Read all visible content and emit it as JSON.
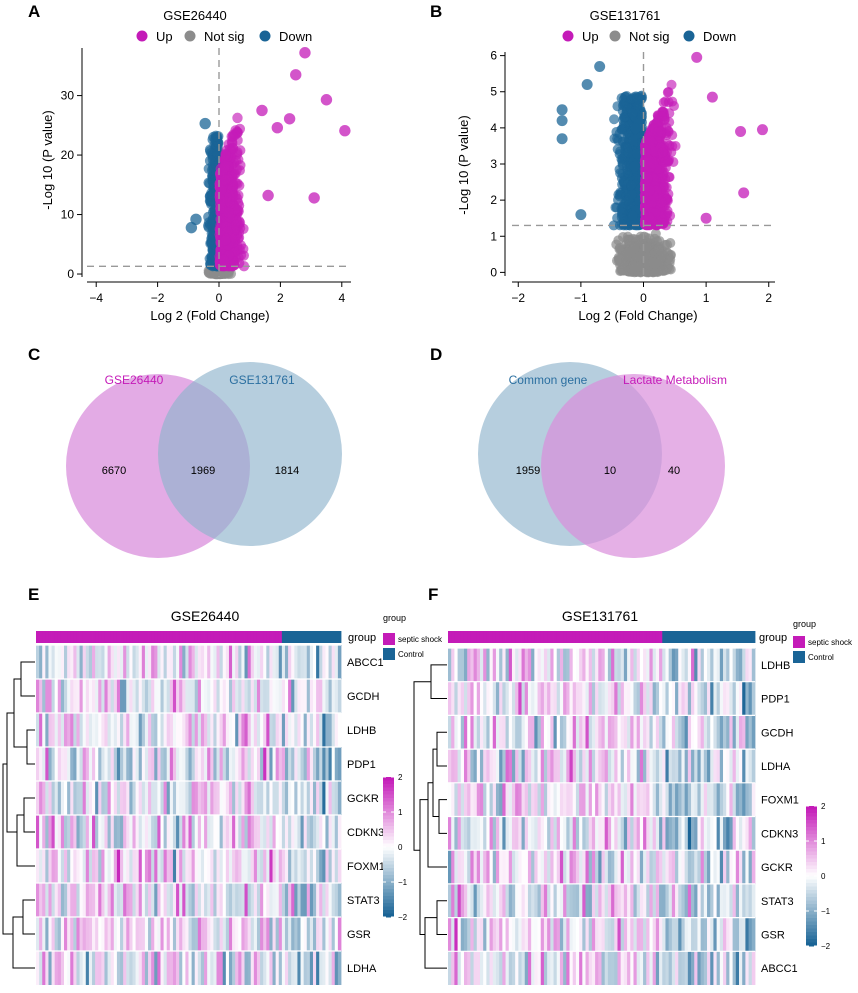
{
  "colors": {
    "up": "#C41BB8",
    "down": "#1A6496",
    "notsig": "#8C8C8C",
    "venn_pink": "#DA8FDC",
    "venn_blue": "#8FB3CC",
    "venn_pink_label": "#C41BB8",
    "venn_blue_label": "#2B6FA0",
    "heat_high": "#C41BB8",
    "heat_mid": "#FFFFFF",
    "heat_low": "#1A6496"
  },
  "panels": {
    "A": "A",
    "B": "B",
    "C": "C",
    "D": "D",
    "E": "E",
    "F": "F"
  },
  "chart_data": [
    {
      "id": "A",
      "type": "scatter",
      "title": "GSE26440",
      "legend": [
        "Up",
        "Not sig",
        "Down"
      ],
      "legend_position": "top",
      "xlabel": "Log 2 (Fold Change)",
      "ylabel": "-Log 10 (P value)",
      "xlim": [
        -4.3,
        4.3
      ],
      "ylim": [
        -0.5,
        38
      ],
      "xticks": [
        -4,
        -2,
        0,
        2,
        4
      ],
      "yticks": [
        0,
        10,
        20,
        30
      ],
      "vline": 0,
      "hline": 1.3,
      "highlight_points": [
        {
          "x": 2.8,
          "y": 37.2,
          "group": "up"
        },
        {
          "x": 2.5,
          "y": 33.5,
          "group": "up"
        },
        {
          "x": 3.5,
          "y": 29.3,
          "group": "up"
        },
        {
          "x": 4.1,
          "y": 24.1,
          "group": "up"
        },
        {
          "x": 3.1,
          "y": 12.8,
          "group": "up"
        },
        {
          "x": 2.3,
          "y": 26.1,
          "group": "up"
        },
        {
          "x": 1.9,
          "y": 24.6,
          "group": "up"
        },
        {
          "x": 1.6,
          "y": 13.2,
          "group": "up"
        },
        {
          "x": 1.4,
          "y": 27.5,
          "group": "up"
        },
        {
          "x": -0.9,
          "y": 7.8,
          "group": "down"
        },
        {
          "x": -0.75,
          "y": 9.2,
          "group": "down"
        },
        {
          "x": -0.45,
          "y": 25.3,
          "group": "down"
        }
      ]
    },
    {
      "id": "B",
      "type": "scatter",
      "title": "GSE131761",
      "legend": [
        "Up",
        "Not sig",
        "Down"
      ],
      "legend_position": "top",
      "xlabel": "Log 2 (Fold Change)",
      "ylabel": "-Log 10 (P value)",
      "xlim": [
        -2.1,
        2.1
      ],
      "ylim": [
        -0.1,
        6.1
      ],
      "xticks": [
        -2,
        -1,
        0,
        1,
        2
      ],
      "yticks": [
        0,
        1,
        2,
        3,
        4,
        5,
        6
      ],
      "vline": 0,
      "hline": 1.3,
      "highlight_points": [
        {
          "x": 0.85,
          "y": 5.95,
          "group": "up"
        },
        {
          "x": 1.9,
          "y": 3.95,
          "group": "up"
        },
        {
          "x": 1.55,
          "y": 3.9,
          "group": "up"
        },
        {
          "x": 1.6,
          "y": 2.2,
          "group": "up"
        },
        {
          "x": 1.1,
          "y": 4.85,
          "group": "up"
        },
        {
          "x": 1.0,
          "y": 1.5,
          "group": "up"
        },
        {
          "x": -1.3,
          "y": 4.5,
          "group": "down"
        },
        {
          "x": -1.3,
          "y": 4.2,
          "group": "down"
        },
        {
          "x": -0.7,
          "y": 5.7,
          "group": "down"
        },
        {
          "x": -1.3,
          "y": 3.7,
          "group": "down"
        },
        {
          "x": -0.9,
          "y": 5.2,
          "group": "down"
        },
        {
          "x": -1.0,
          "y": 1.6,
          "group": "down"
        }
      ]
    },
    {
      "id": "C",
      "type": "venn",
      "sets": [
        "GSE26440",
        "GSE131761"
      ],
      "values": {
        "left_only": "6670",
        "intersection": "1969",
        "right_only": "1814"
      }
    },
    {
      "id": "D",
      "type": "venn",
      "sets": [
        "Common gene",
        "Lactate Metabolism"
      ],
      "values": {
        "left_only": "1959",
        "intersection": "10",
        "right_only": "40"
      }
    },
    {
      "id": "E",
      "type": "heatmap",
      "title": "GSE26440",
      "rows": [
        "ABCC1",
        "GCDH",
        "LDHB",
        "PDP1",
        "GCKR",
        "CDKN3",
        "FOXM1",
        "STAT3",
        "GSR",
        "LDHA"
      ],
      "n_samples": 98,
      "n_septic": 79,
      "group_label": "group",
      "legend_title": "group",
      "legend_items": [
        "septic shock",
        "Control"
      ],
      "scale_ticks": [
        "2",
        "1",
        "0",
        "−1",
        "−2"
      ]
    },
    {
      "id": "F",
      "type": "heatmap",
      "title": "GSE131761",
      "rows": [
        "LDHB",
        "PDP1",
        "GCDH",
        "LDHA",
        "FOXM1",
        "CDKN3",
        "GCKR",
        "STAT3",
        "GSR",
        "ABCC1"
      ],
      "n_samples": 96,
      "n_septic": 67,
      "group_label": "group",
      "legend_title": "group",
      "legend_items": [
        "septic shock",
        "Control"
      ],
      "scale_ticks": [
        "2",
        "1",
        "0",
        "−1",
        "−2"
      ]
    }
  ]
}
